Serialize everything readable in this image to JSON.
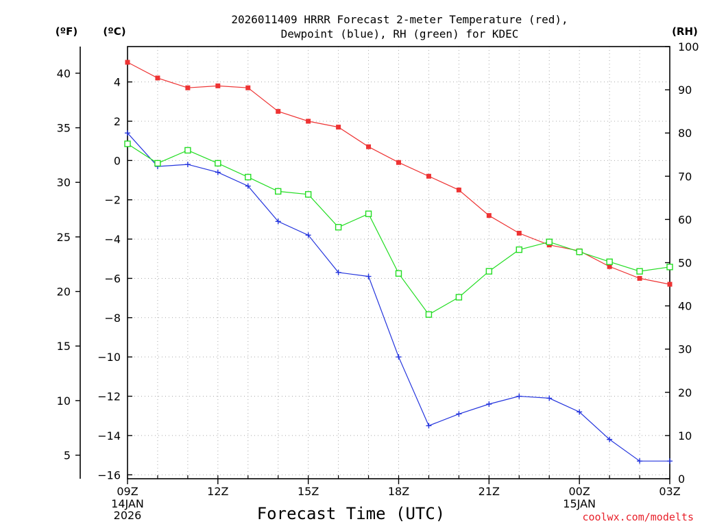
{
  "chart_data": {
    "type": "line",
    "title": [
      "2026011409 HRRR Forecast 2-meter Temperature (red),",
      "Dewpoint (blue), RH (green) for KDEC"
    ],
    "xlabel": "Forecast Time (UTC)",
    "credit": "coolwx.com/modelts",
    "units": {
      "fahrenheit": "(ºF)",
      "celsius": "(ºC)",
      "rh": "(RH)"
    },
    "x_hours": [
      9,
      10,
      11,
      12,
      13,
      14,
      15,
      16,
      17,
      18,
      19,
      20,
      21,
      22,
      23,
      24,
      25,
      26,
      27
    ],
    "xlim": [
      9,
      27
    ],
    "x_ticks": [
      {
        "hour": 9,
        "label": "09Z",
        "date": "14JAN",
        "year": "2026"
      },
      {
        "hour": 12,
        "label": "12Z"
      },
      {
        "hour": 15,
        "label": "15Z"
      },
      {
        "hour": 18,
        "label": "18Z"
      },
      {
        "hour": 21,
        "label": "21Z"
      },
      {
        "hour": 24,
        "label": "00Z",
        "date": "15JAN"
      },
      {
        "hour": 27,
        "label": "03Z"
      }
    ],
    "celsius_axis": {
      "ylim": [
        -16.2,
        5.8
      ],
      "ticks": [
        4,
        2,
        0,
        -2,
        -4,
        -6,
        -8,
        -10,
        -12,
        -14,
        -16
      ],
      "tick_labels": [
        "4",
        "2",
        "0",
        "−2",
        "−4",
        "−6",
        "−8",
        "−10",
        "−12",
        "−14",
        "−16"
      ]
    },
    "fahrenheit_axis": {
      "ticks": [
        40,
        35,
        30,
        25,
        20,
        15,
        10,
        5
      ],
      "tick_labels": [
        "40",
        "35",
        "30",
        "25",
        "20",
        "15",
        "10",
        "5"
      ]
    },
    "rh_axis": {
      "ylim": [
        0,
        100
      ],
      "ticks": [
        100,
        90,
        80,
        70,
        60,
        50,
        40,
        30,
        20,
        10,
        0
      ],
      "tick_labels": [
        "100",
        "90",
        "80",
        "70",
        "60",
        "50",
        "40",
        "30",
        "20",
        "10",
        "0"
      ]
    },
    "series": [
      {
        "name": "Temperature",
        "axis": "celsius",
        "color": "#ee3333",
        "marker": "filled-square",
        "values": [
          5.0,
          4.2,
          3.7,
          3.8,
          3.7,
          2.5,
          2.0,
          1.7,
          0.7,
          -0.1,
          -0.8,
          -1.5,
          -2.8,
          -3.7,
          -4.3,
          -4.6,
          -5.4,
          -6.0,
          -6.3
        ]
      },
      {
        "name": "Dewpoint",
        "axis": "celsius",
        "color": "#2233dd",
        "marker": "plus",
        "values": [
          1.4,
          -0.3,
          -0.2,
          -0.6,
          -1.3,
          -3.1,
          -3.8,
          -5.7,
          -5.9,
          -10.0,
          -13.5,
          -12.9,
          -12.4,
          -12.0,
          -12.1,
          -12.8,
          -14.2,
          -15.3,
          -15.3
        ]
      },
      {
        "name": "RH",
        "axis": "rh",
        "color": "#22dd22",
        "marker": "open-square",
        "values": [
          77.5,
          73,
          76,
          73,
          69.8,
          66.5,
          65.8,
          58.2,
          61.3,
          47.5,
          38,
          42,
          48,
          53,
          54.8,
          52.5,
          50.2,
          48,
          49
        ]
      }
    ]
  }
}
